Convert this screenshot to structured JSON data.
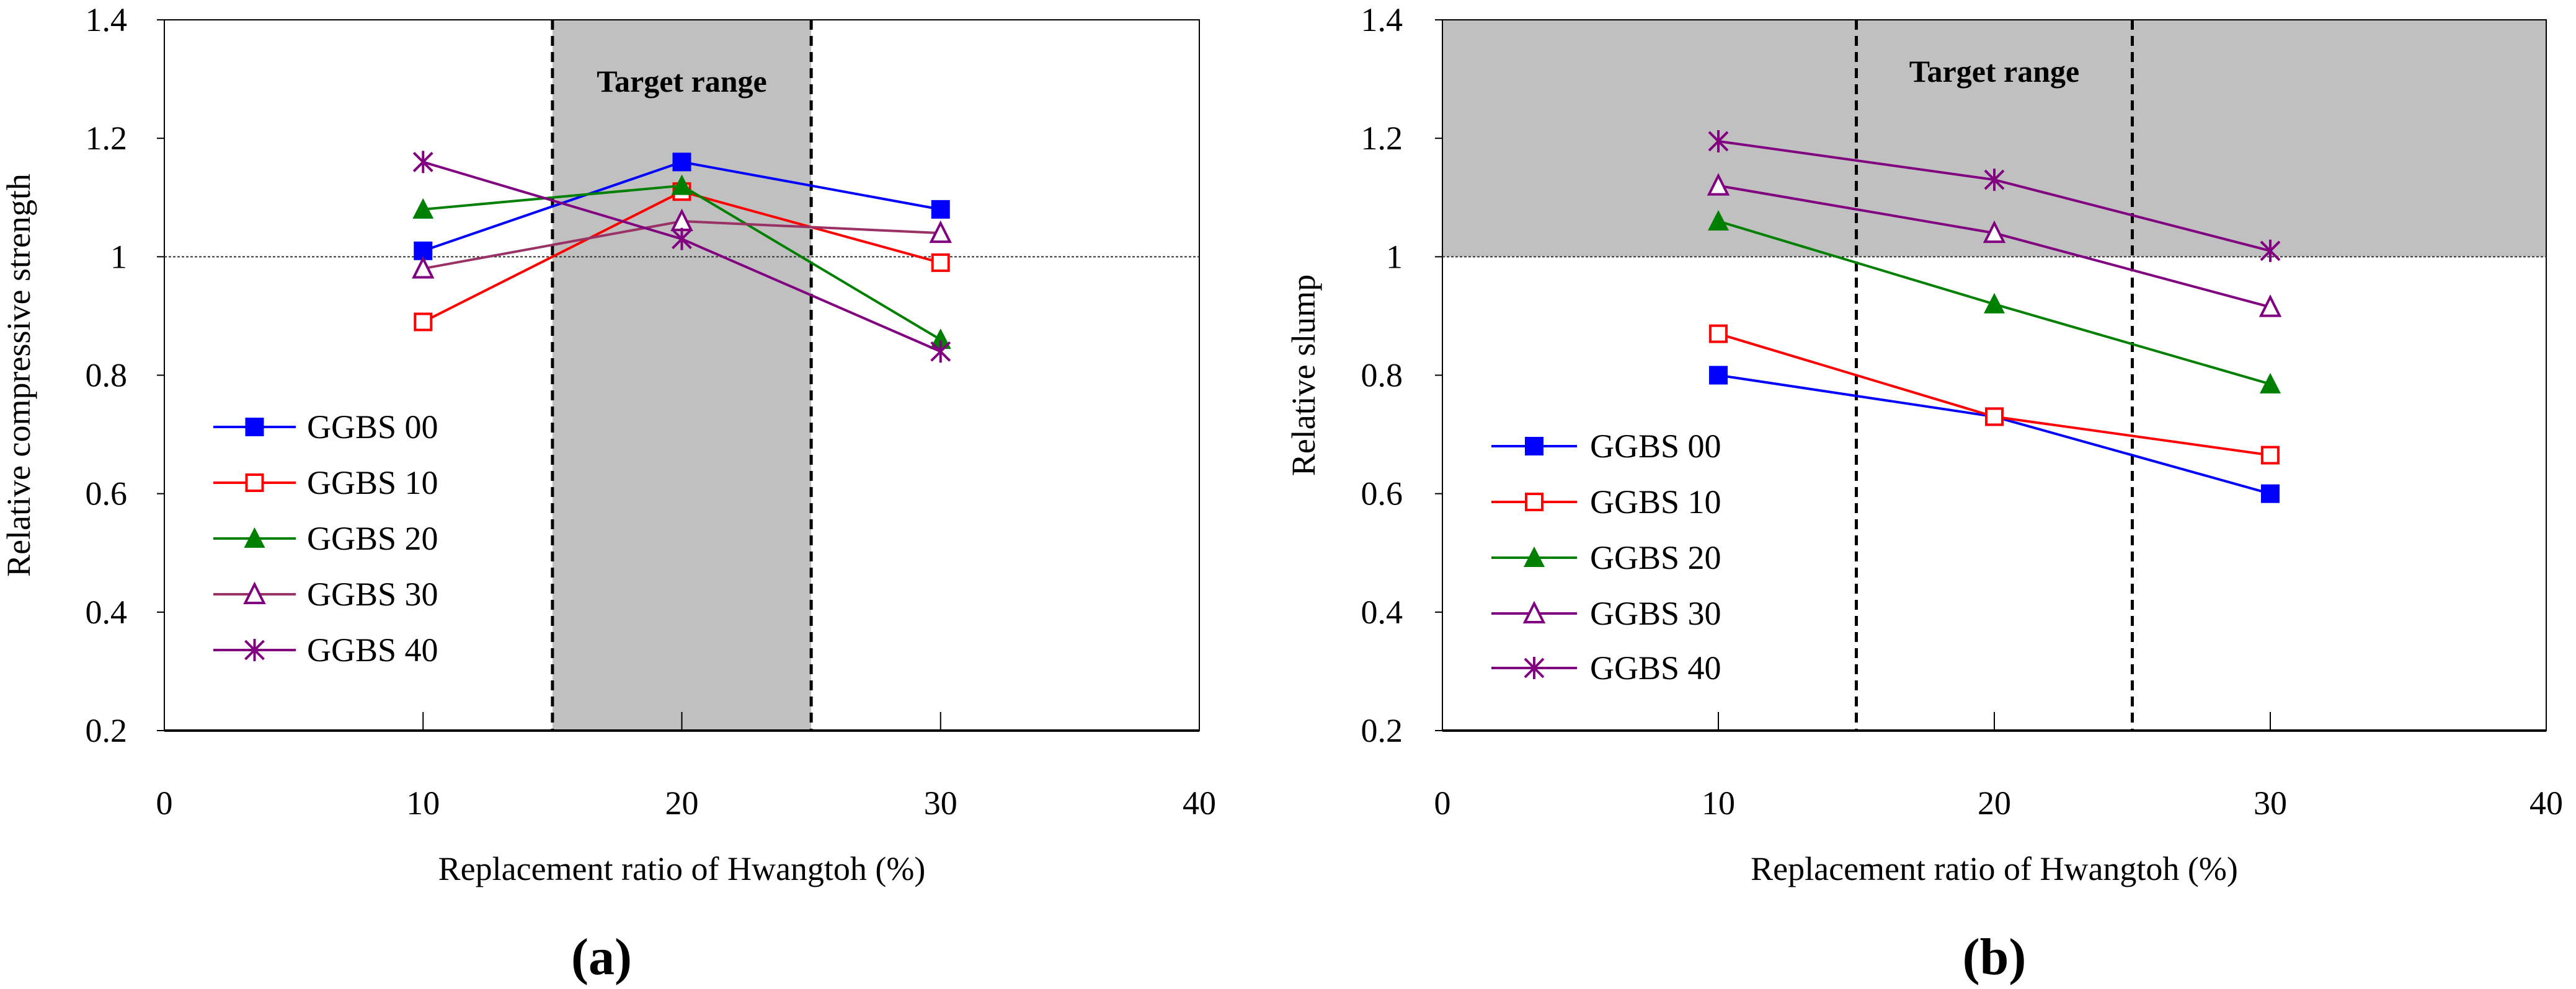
{
  "chart_data": [
    {
      "type": "line",
      "panel_label": "(a)",
      "title": "",
      "xlabel": "Replacement ratio of Hwangtoh (%)",
      "ylabel": "Relative compressive strength",
      "xlim": [
        0,
        40
      ],
      "ylim": [
        0.2,
        1.4
      ],
      "xticks": [
        "0",
        "10",
        "20",
        "30",
        "40"
      ],
      "yticks": [
        "0.2",
        "0.4",
        "0.6",
        "0.8",
        "1",
        "1.2",
        "1.4"
      ],
      "x": [
        10,
        20,
        30
      ],
      "reference_line_y": 1.0,
      "target_range": {
        "label": "Target range",
        "x": [
          15,
          25
        ],
        "y": [
          0.2,
          1.4
        ]
      },
      "legend_position": "lower-left",
      "series": [
        {
          "name": "GGBS 00",
          "color": "#0000ff",
          "marker": "filled-square",
          "values": [
            1.01,
            1.16,
            1.08
          ]
        },
        {
          "name": "GGBS 10",
          "color": "#ff0000",
          "marker": "open-square",
          "values": [
            0.89,
            1.11,
            0.99
          ]
        },
        {
          "name": "GGBS 20",
          "color": "#008000",
          "marker": "filled-triangle",
          "values": [
            1.08,
            1.12,
            0.86
          ]
        },
        {
          "name": "GGBS 30",
          "color": "#993366",
          "markerColor": "#800080",
          "marker": "open-triangle",
          "values": [
            0.98,
            1.06,
            1.04
          ]
        },
        {
          "name": "GGBS 40",
          "color": "#800080",
          "marker": "asterisk",
          "values": [
            1.16,
            1.03,
            0.84
          ]
        }
      ]
    },
    {
      "type": "line",
      "panel_label": "(b)",
      "title": "",
      "xlabel": "Replacement ratio of Hwangtoh (%)",
      "ylabel": "Relative slump",
      "xlim": [
        0,
        40
      ],
      "ylim": [
        0.2,
        1.4
      ],
      "xticks": [
        "0",
        "10",
        "20",
        "30",
        "40"
      ],
      "yticks": [
        "0.2",
        "0.4",
        "0.6",
        "0.8",
        "1",
        "1.2",
        "1.4"
      ],
      "x": [
        10,
        20,
        30
      ],
      "reference_line_y": 1.0,
      "target_range": {
        "label": "Target range",
        "x": [
          15,
          25
        ],
        "y": [
          1.0,
          1.4
        ]
      },
      "legend_position": "lower-left",
      "series": [
        {
          "name": "GGBS 00",
          "color": "#0000ff",
          "marker": "filled-square",
          "values": [
            0.8,
            0.73,
            0.6
          ]
        },
        {
          "name": "GGBS 10",
          "color": "#ff0000",
          "marker": "open-square",
          "values": [
            0.87,
            0.73,
            0.665
          ]
        },
        {
          "name": "GGBS 20",
          "color": "#008000",
          "marker": "filled-triangle",
          "values": [
            1.06,
            0.92,
            0.785
          ]
        },
        {
          "name": "GGBS 30",
          "color": "#800080",
          "marker": "open-triangle",
          "values": [
            1.12,
            1.04,
            0.915
          ]
        },
        {
          "name": "GGBS 40",
          "color": "#800080",
          "marker": "asterisk",
          "values": [
            1.195,
            1.13,
            1.01
          ]
        }
      ]
    }
  ]
}
